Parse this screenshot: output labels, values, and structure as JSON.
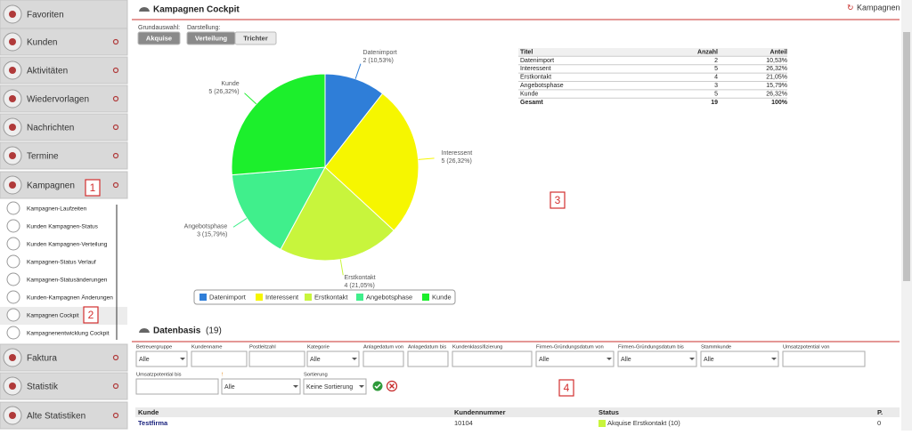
{
  "sidebar": {
    "items": [
      "Favoriten",
      "Kunden",
      "Aktivitäten",
      "Wiedervorlagen",
      "Nachrichten",
      "Termine",
      "Kampagnen"
    ],
    "submenu": [
      "Kampagnen-Laufzeiten",
      "Kunden Kampagnen-Status",
      "Kunden Kampagnen-Verteilung",
      "Kampagnen-Status Verlauf",
      "Kampagnen-Statusänderungen",
      "Kunden-Kampagnen Änderungen",
      "Kampagnen Cockpit",
      "Kampagnenentwicklung Cockpit"
    ],
    "items_bottom": [
      "Faktura",
      "Statistik",
      "Alte Statistiken"
    ]
  },
  "header": {
    "title": "Kampagnen Cockpit",
    "link": "Kampagnen"
  },
  "selection": {
    "grundauswahl_label": "Grundauswahl:",
    "grundauswahl": [
      "Akquise"
    ],
    "darstellung_label": "Darstellung:",
    "darstellung": [
      "Verteilung",
      "Trichter"
    ]
  },
  "pie": {
    "slices": [
      {
        "name": "Datenimport",
        "count": 2,
        "label": "2 (10,53%)",
        "color": "#2f7ed8"
      },
      {
        "name": "Interessent",
        "count": 5,
        "label": "5 (26,32%)",
        "color": "#f6f600"
      },
      {
        "name": "Erstkontakt",
        "count": 4,
        "label": "4 (21,05%)",
        "color": "#c8f53c"
      },
      {
        "name": "Angebotsphase",
        "count": 3,
        "label": "3 (15,79%)",
        "color": "#40ef8c"
      },
      {
        "name": "Kunde",
        "count": 5,
        "label": "5 (26,32%)",
        "color": "#1cef2c"
      }
    ]
  },
  "summary_table": {
    "columns": [
      "Titel",
      "Anzahl",
      "Anteil"
    ],
    "rows": [
      [
        "Datenimport",
        "2",
        "10,53%"
      ],
      [
        "Interessent",
        "5",
        "26,32%"
      ],
      [
        "Erstkontakt",
        "4",
        "21,05%"
      ],
      [
        "Angebotsphase",
        "3",
        "15,79%"
      ],
      [
        "Kunde",
        "5",
        "26,32%"
      ]
    ],
    "total": [
      "Gesamt",
      "19",
      "100%"
    ]
  },
  "markers": [
    "1",
    "2",
    "3",
    "4"
  ],
  "datenbasis": {
    "title": "Datenbasis",
    "count": "(19)"
  },
  "filters": {
    "row1": [
      {
        "label": "Betreuergruppe",
        "value": "Alle"
      },
      {
        "label": "Kundenname"
      },
      {
        "label": "Postleitzahl"
      },
      {
        "label": "Kategorie",
        "value": "Alle"
      },
      {
        "label": "Anlagedatum von"
      },
      {
        "label": "Anlagedatum bis"
      },
      {
        "label": "Kundenklassifizierung"
      },
      {
        "label": "Firmen-Gründungsdatum von",
        "value": "Alle"
      },
      {
        "label": "Firmen-Gründungsdatum bis",
        "value": "Alle"
      },
      {
        "label": "Stammkunde",
        "value": "Alle"
      },
      {
        "label": "Umsatzpotential von"
      }
    ],
    "row2": [
      {
        "label": "Umsatzpotential bis"
      },
      {
        "label": "!",
        "value": "Alle"
      },
      {
        "label": "Sortierung",
        "value": "Keine Sortierung"
      }
    ]
  },
  "results": {
    "columns": [
      "Kunde",
      "Kundennummer",
      "Status",
      "P."
    ],
    "rows": [
      [
        "Testfirma",
        "10104",
        "Akquise Erstkontakt (10)",
        "0"
      ]
    ],
    "status_color": "#c8f53c"
  }
}
